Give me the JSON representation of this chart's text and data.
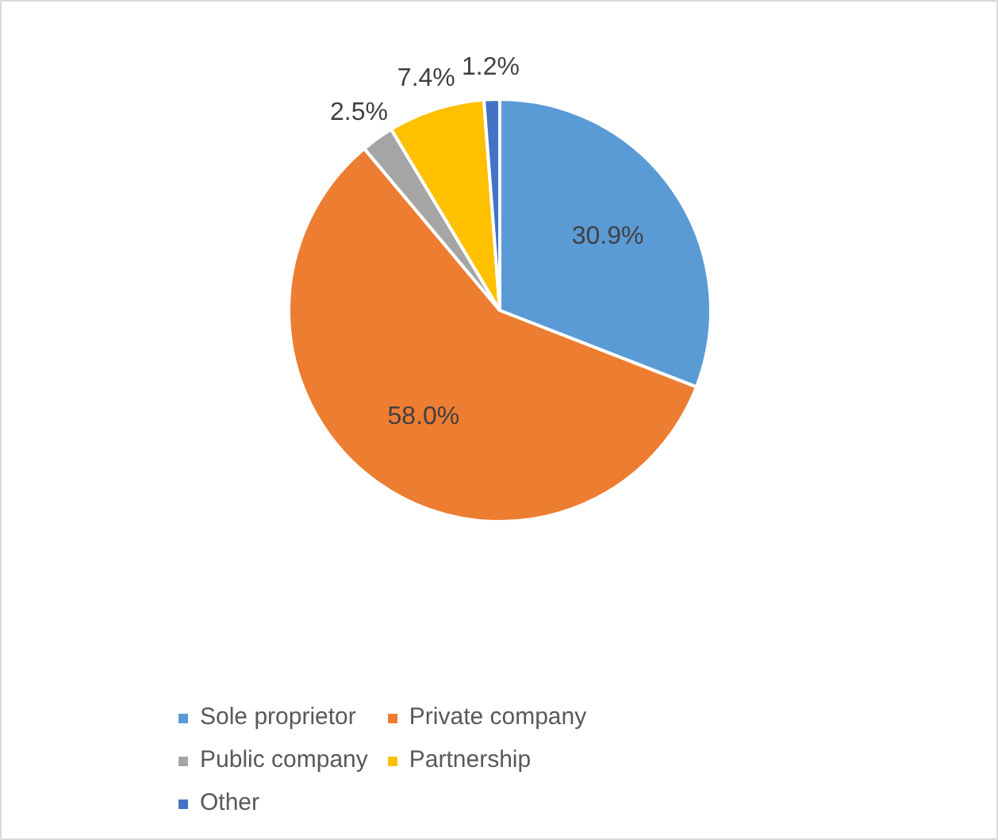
{
  "chart_data": {
    "type": "pie",
    "categories": [
      "Sole proprietor",
      "Private company",
      "Public company",
      "Partnership",
      "Other"
    ],
    "values": [
      30.9,
      58.0,
      2.5,
      7.4,
      1.2
    ],
    "colors": [
      "#5b9bd5",
      "#ed7d31",
      "#a5a5a5",
      "#ffc000",
      "#4472c4"
    ],
    "value_labels": [
      "30.9%",
      "58.0%",
      "2.5%",
      "7.4%",
      "1.2%"
    ],
    "legend": "bottom"
  }
}
